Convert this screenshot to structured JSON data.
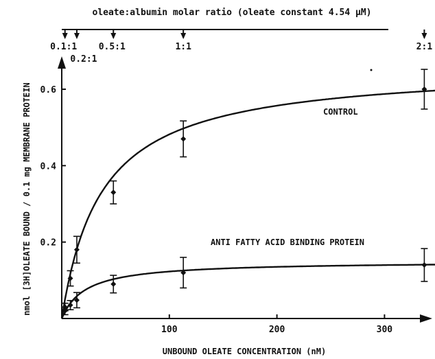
{
  "chart_data": {
    "type": "scatter",
    "xlabel": "UNBOUND OLEATE CONCENTRATION (nM)",
    "ylabel_prefix": "nmol ",
    "ylabel_isotope": "[3H]",
    "ylabel_rest": "OLEATE BOUND / 0.1 mg MEMBRANE PROTEIN",
    "xlim": [
      0,
      380
    ],
    "ylim": [
      0,
      0.68
    ],
    "xticks": [
      {
        "value": 100,
        "label": "100"
      },
      {
        "value": 200,
        "label": "200"
      },
      {
        "value": 300,
        "label": "300"
      }
    ],
    "yticks": [
      {
        "value": 0.2,
        "label": "0.2"
      },
      {
        "value": 0.4,
        "label": "0.4"
      },
      {
        "value": 0.6,
        "label": "0.6"
      }
    ],
    "top_axis": {
      "title": "oleate:albumin molar ratio (oleate constant 4.54 µM)",
      "markers": [
        {
          "x": 3,
          "label": "0.1:1"
        },
        {
          "x": 14,
          "label": "0.2:1"
        },
        {
          "x": 48,
          "label": "0.5:1"
        },
        {
          "x": 113,
          "label": "1:1"
        },
        {
          "x": 337,
          "label": "2:1"
        }
      ]
    },
    "series": [
      {
        "name": "CONTROL",
        "fit": {
          "bmax": 0.66,
          "kd": 37
        },
        "points": [
          {
            "x": 3,
            "y": 0.03,
            "err": 0.01
          },
          {
            "x": 8,
            "y": 0.105,
            "err": 0.02
          },
          {
            "x": 14,
            "y": 0.18,
            "err": 0.035
          },
          {
            "x": 48,
            "y": 0.33,
            "err": 0.03
          },
          {
            "x": 113,
            "y": 0.47,
            "err": 0.047
          },
          {
            "x": 337,
            "y": 0.6,
            "err": 0.052
          }
        ]
      },
      {
        "name": "ANTI FATTY ACID BINDING PROTEIN",
        "fit": {
          "bmax": 0.15,
          "kd": 22
        },
        "points": [
          {
            "x": 3,
            "y": 0.02,
            "err": 0.01
          },
          {
            "x": 8,
            "y": 0.035,
            "err": 0.012
          },
          {
            "x": 14,
            "y": 0.048,
            "err": 0.02
          },
          {
            "x": 48,
            "y": 0.09,
            "err": 0.023
          },
          {
            "x": 113,
            "y": 0.12,
            "err": 0.04
          },
          {
            "x": 337,
            "y": 0.14,
            "err": 0.043
          }
        ]
      }
    ]
  }
}
